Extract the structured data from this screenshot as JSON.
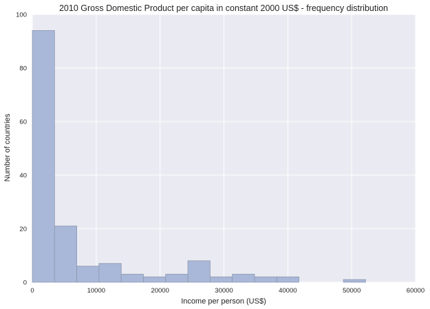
{
  "chart_data": {
    "type": "bar",
    "title": "2010 Gross Domestic Product per capita in constant 2000 US$ - frequency distribution",
    "xlabel": "Income per person (US$)",
    "ylabel": "Number of countries",
    "xlim": [
      0,
      60000
    ],
    "ylim": [
      0,
      100
    ],
    "xticks": [
      "0",
      "10000",
      "20000",
      "30000",
      "40000",
      "50000",
      "60000"
    ],
    "yticks": [
      "0",
      "20",
      "40",
      "60",
      "80",
      "100"
    ],
    "grid": true,
    "bins": [
      {
        "x0": 0,
        "x1": 3479,
        "count": 94
      },
      {
        "x0": 3479,
        "x1": 6958,
        "count": 21
      },
      {
        "x0": 6958,
        "x1": 10437,
        "count": 6
      },
      {
        "x0": 10437,
        "x1": 13916,
        "count": 7
      },
      {
        "x0": 13916,
        "x1": 17395,
        "count": 3
      },
      {
        "x0": 17395,
        "x1": 20874,
        "count": 2
      },
      {
        "x0": 20874,
        "x1": 24353,
        "count": 3
      },
      {
        "x0": 24353,
        "x1": 27832,
        "count": 8
      },
      {
        "x0": 27832,
        "x1": 31311,
        "count": 2
      },
      {
        "x0": 31311,
        "x1": 34790,
        "count": 3
      },
      {
        "x0": 34790,
        "x1": 38269,
        "count": 2
      },
      {
        "x0": 38269,
        "x1": 41748,
        "count": 2
      },
      {
        "x0": 41748,
        "x1": 45227,
        "count": 0
      },
      {
        "x0": 45227,
        "x1": 48706,
        "count": 0
      },
      {
        "x0": 48706,
        "x1": 52185,
        "count": 1
      }
    ]
  }
}
